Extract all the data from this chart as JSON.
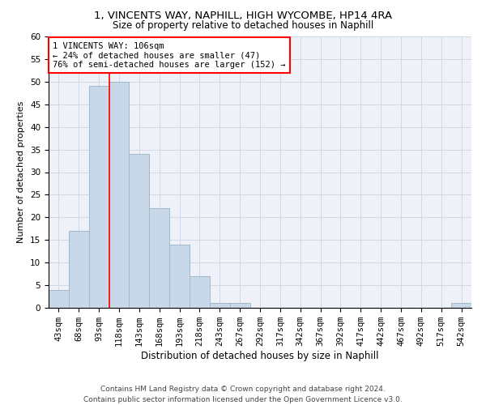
{
  "title": "1, VINCENTS WAY, NAPHILL, HIGH WYCOMBE, HP14 4RA",
  "subtitle": "Size of property relative to detached houses in Naphill",
  "xlabel": "Distribution of detached houses by size in Naphill",
  "ylabel": "Number of detached properties",
  "bar_labels": [
    "43sqm",
    "68sqm",
    "93sqm",
    "118sqm",
    "143sqm",
    "168sqm",
    "193sqm",
    "218sqm",
    "243sqm",
    "267sqm",
    "292sqm",
    "317sqm",
    "342sqm",
    "367sqm",
    "392sqm",
    "417sqm",
    "442sqm",
    "467sqm",
    "492sqm",
    "517sqm",
    "542sqm"
  ],
  "bar_values": [
    4,
    17,
    49,
    50,
    34,
    22,
    14,
    7,
    1,
    1,
    0,
    0,
    0,
    0,
    0,
    0,
    0,
    0,
    0,
    0,
    1
  ],
  "bar_color": "#c8d8e8",
  "bar_edgecolor": "#a0b8cc",
  "property_line_x": 2.5,
  "annotation_text": "1 VINCENTS WAY: 106sqm\n← 24% of detached houses are smaller (47)\n76% of semi-detached houses are larger (152) →",
  "annotation_box_color": "white",
  "annotation_box_edgecolor": "red",
  "vline_color": "red",
  "ylim": [
    0,
    60
  ],
  "yticks": [
    0,
    5,
    10,
    15,
    20,
    25,
    30,
    35,
    40,
    45,
    50,
    55,
    60
  ],
  "grid_color": "#d0d8e8",
  "background_color": "#eef2f8",
  "footer": "Contains HM Land Registry data © Crown copyright and database right 2024.\nContains public sector information licensed under the Open Government Licence v3.0.",
  "title_fontsize": 9.5,
  "subtitle_fontsize": 8.5,
  "xlabel_fontsize": 8.5,
  "ylabel_fontsize": 8,
  "tick_fontsize": 7.5,
  "annotation_fontsize": 7.5,
  "footer_fontsize": 6.5
}
